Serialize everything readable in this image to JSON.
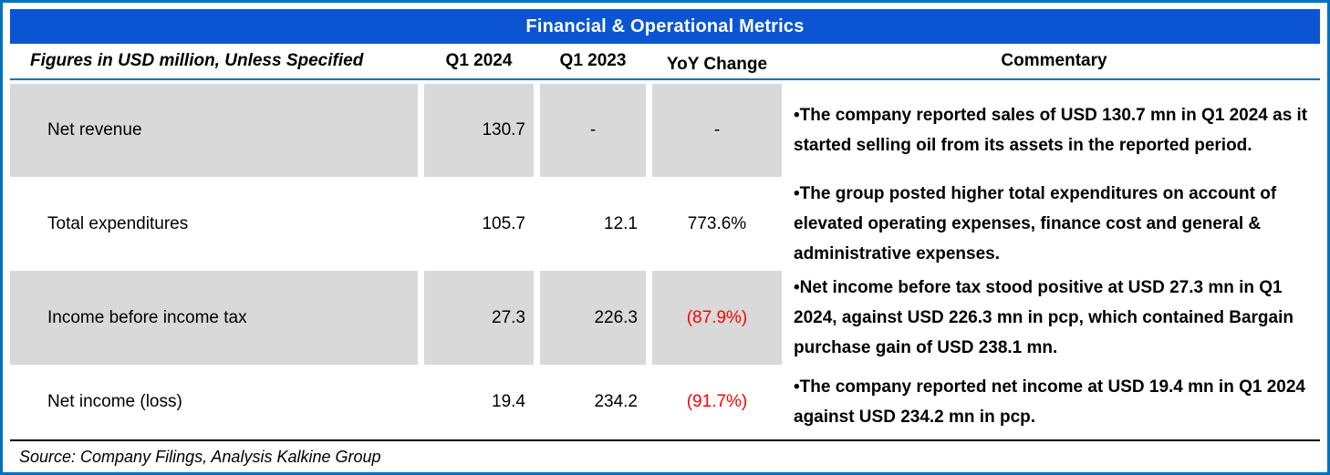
{
  "title": "Financial & Operational Metrics",
  "colors": {
    "title_bar_bg": "#0B55D3",
    "frame_border": "#0070C0",
    "row_shade": "#D9D9D9",
    "negative_value": "#FF0000",
    "title_text": "#FFFFFF"
  },
  "table": {
    "bullet": "•",
    "column_headers": {
      "label": "Figures in USD million, Unless Specified",
      "q1_2024": "Q1 2024",
      "q1_2023": "Q1 2023",
      "yoy": "YoY Change",
      "commentary": "Commentary"
    },
    "rows": [
      {
        "label": "Net revenue",
        "q1_2024": "130.7",
        "q1_2023": "-",
        "yoy": "-",
        "yoy_negative": false,
        "shaded": true,
        "commentary": "The company reported sales of USD 130.7 mn in Q1 2024 as it started selling oil from its assets in the reported period."
      },
      {
        "label": "Total expenditures",
        "q1_2024": "105.7",
        "q1_2023": "12.1",
        "yoy": "773.6%",
        "yoy_negative": false,
        "shaded": false,
        "commentary": "The group posted higher total expenditures on account of elevated operating expenses, finance cost and general & administrative expenses."
      },
      {
        "label": "Income before income tax",
        "q1_2024": "27.3",
        "q1_2023": "226.3",
        "yoy": "(87.9%)",
        "yoy_negative": true,
        "shaded": true,
        "commentary": "Net income before tax stood positive at USD 27.3 mn in Q1 2024, against USD 226.3 mn in pcp, which contained Bargain purchase gain of USD 238.1 mn."
      },
      {
        "label": "Net income (loss)",
        "q1_2024": "19.4",
        "q1_2023": "234.2",
        "yoy": "(91.7%)",
        "yoy_negative": true,
        "shaded": false,
        "commentary": "The company reported net income at USD 19.4 mn in Q1 2024 against USD 234.2 mn in pcp."
      }
    ]
  },
  "footer": {
    "source": "Source: Company Filings, Analysis Kalkine Group"
  }
}
